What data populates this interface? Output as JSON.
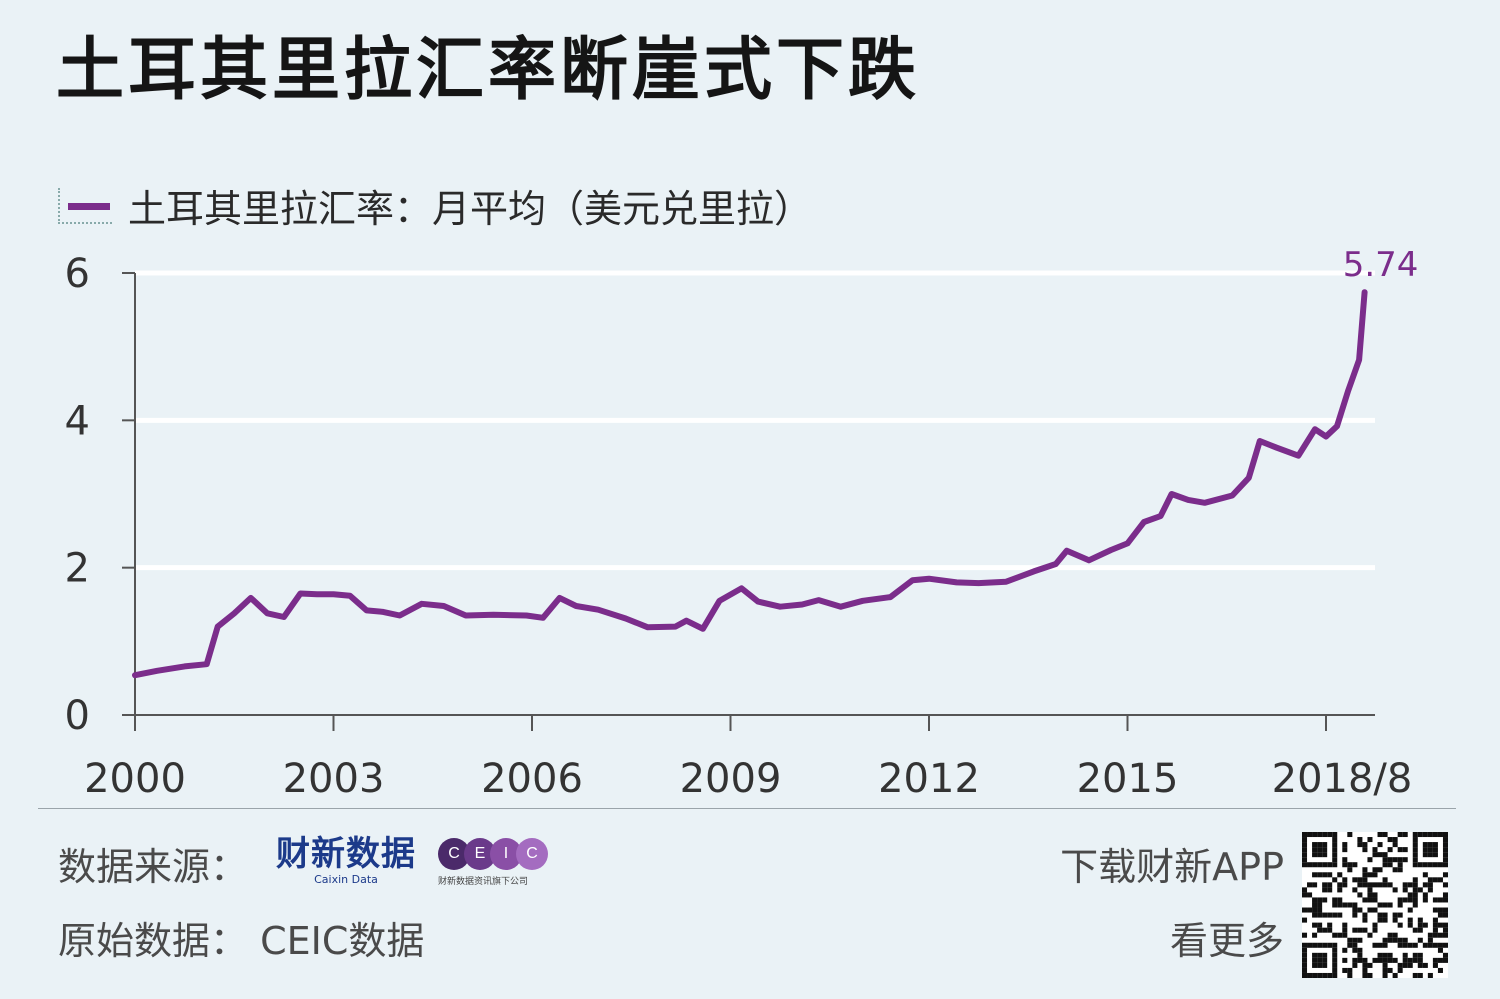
{
  "title": "土耳其里拉汇率断崖式下跌",
  "legend": {
    "label": "土耳其里拉汇率：月平均（美元兑里拉）"
  },
  "footer": {
    "source_label": "数据来源：",
    "caixin_logo_cn": "财新数据",
    "caixin_logo_en": "Caixin Data",
    "ceic_letters": [
      "C",
      "E",
      "I",
      "C"
    ],
    "ceic_sub": "财新数据资讯旗下公司",
    "raw_data": "原始数据：  CEIC数据",
    "app_line1": "下载财新APP",
    "app_line2": "看更多"
  },
  "colors": {
    "background": "#eaf2f6",
    "series": "#7b2d8b",
    "grid": "#ffffff",
    "axis": "#555555",
    "ceic_circles": [
      "#4b2a6a",
      "#6a3a8a",
      "#8a4fa6",
      "#a46cc0"
    ]
  },
  "chart_data": {
    "type": "line",
    "title": "土耳其里拉汇率断崖式下跌",
    "ylabel": "",
    "xlabel": "",
    "ylim": [
      0,
      6
    ],
    "xlim": [
      "2000-01",
      "2018-08"
    ],
    "yticks": [
      0,
      2,
      4,
      6
    ],
    "xticks": [
      {
        "label": "2000",
        "date": "2000-01"
      },
      {
        "label": "2003",
        "date": "2003-01"
      },
      {
        "label": "2006",
        "date": "2006-01"
      },
      {
        "label": "2009",
        "date": "2009-01"
      },
      {
        "label": "2012",
        "date": "2012-01"
      },
      {
        "label": "2015",
        "date": "2015-01"
      },
      {
        "label": "2018/8",
        "date": "2018-01"
      }
    ],
    "grid": true,
    "end_label": "5.74",
    "series": [
      {
        "name": "土耳其里拉汇率：月平均（美元兑里拉）",
        "points": [
          [
            "2000-01",
            0.54
          ],
          [
            "2000-05",
            0.6
          ],
          [
            "2000-10",
            0.66
          ],
          [
            "2001-02",
            0.69
          ],
          [
            "2001-04",
            1.2
          ],
          [
            "2001-07",
            1.38
          ],
          [
            "2001-10",
            1.59
          ],
          [
            "2002-01",
            1.38
          ],
          [
            "2002-04",
            1.33
          ],
          [
            "2002-07",
            1.65
          ],
          [
            "2002-10",
            1.64
          ],
          [
            "2003-01",
            1.64
          ],
          [
            "2003-04",
            1.62
          ],
          [
            "2003-07",
            1.42
          ],
          [
            "2003-10",
            1.4
          ],
          [
            "2004-01",
            1.35
          ],
          [
            "2004-05",
            1.51
          ],
          [
            "2004-09",
            1.48
          ],
          [
            "2005-01",
            1.35
          ],
          [
            "2005-06",
            1.36
          ],
          [
            "2005-12",
            1.35
          ],
          [
            "2006-03",
            1.32
          ],
          [
            "2006-06",
            1.59
          ],
          [
            "2006-09",
            1.48
          ],
          [
            "2007-01",
            1.43
          ],
          [
            "2007-06",
            1.31
          ],
          [
            "2007-10",
            1.19
          ],
          [
            "2008-03",
            1.2
          ],
          [
            "2008-05",
            1.28
          ],
          [
            "2008-08",
            1.17
          ],
          [
            "2008-11",
            1.55
          ],
          [
            "2009-03",
            1.72
          ],
          [
            "2009-06",
            1.54
          ],
          [
            "2009-10",
            1.47
          ],
          [
            "2010-02",
            1.5
          ],
          [
            "2010-05",
            1.56
          ],
          [
            "2010-09",
            1.47
          ],
          [
            "2011-01",
            1.55
          ],
          [
            "2011-06",
            1.6
          ],
          [
            "2011-10",
            1.83
          ],
          [
            "2012-01",
            1.85
          ],
          [
            "2012-06",
            1.8
          ],
          [
            "2012-10",
            1.79
          ],
          [
            "2013-03",
            1.81
          ],
          [
            "2013-08",
            1.95
          ],
          [
            "2013-12",
            2.05
          ],
          [
            "2014-02",
            2.23
          ],
          [
            "2014-06",
            2.1
          ],
          [
            "2014-10",
            2.24
          ],
          [
            "2015-01",
            2.33
          ],
          [
            "2015-04",
            2.62
          ],
          [
            "2015-07",
            2.7
          ],
          [
            "2015-09",
            3.0
          ],
          [
            "2015-12",
            2.92
          ],
          [
            "2016-03",
            2.88
          ],
          [
            "2016-08",
            2.98
          ],
          [
            "2016-11",
            3.22
          ],
          [
            "2017-01",
            3.72
          ],
          [
            "2017-04",
            3.63
          ],
          [
            "2017-08",
            3.52
          ],
          [
            "2017-11",
            3.88
          ],
          [
            "2018-01",
            3.78
          ],
          [
            "2018-03",
            3.92
          ],
          [
            "2018-05",
            4.4
          ],
          [
            "2018-07",
            4.82
          ],
          [
            "2018-08",
            5.74
          ]
        ]
      }
    ]
  }
}
